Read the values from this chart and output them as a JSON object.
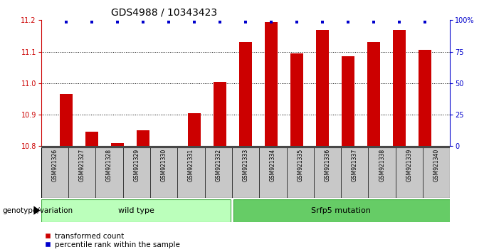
{
  "title": "GDS4988 / 10343423",
  "samples": [
    "GSM921326",
    "GSM921327",
    "GSM921328",
    "GSM921329",
    "GSM921330",
    "GSM921331",
    "GSM921332",
    "GSM921333",
    "GSM921334",
    "GSM921335",
    "GSM921336",
    "GSM921337",
    "GSM921338",
    "GSM921339",
    "GSM921340"
  ],
  "bar_values": [
    10.965,
    10.845,
    10.81,
    10.85,
    10.8,
    10.905,
    11.005,
    11.13,
    11.195,
    11.095,
    11.17,
    11.085,
    11.13,
    11.17,
    11.105
  ],
  "ymin": 10.8,
  "ymax": 11.2,
  "yticks": [
    10.8,
    10.9,
    11.0,
    11.1,
    11.2
  ],
  "right_yticks": [
    0,
    25,
    50,
    75,
    100
  ],
  "right_yticklabels": [
    "0",
    "25",
    "50",
    "75",
    "100%"
  ],
  "bar_color": "#cc0000",
  "percentile_color": "#0000cc",
  "wild_type_label": "wild type",
  "srf_label": "Srfp5 mutation",
  "group_label": "genotype/variation",
  "wild_type_color": "#bbffbb",
  "srf_color": "#66cc66",
  "bar_width": 0.5,
  "legend_red_label": "transformed count",
  "legend_blue_label": "percentile rank within the sample",
  "tick_label_bg": "#c8c8c8",
  "title_fontsize": 10,
  "tick_fontsize": 7,
  "n_wild": 7,
  "n_srf": 8
}
